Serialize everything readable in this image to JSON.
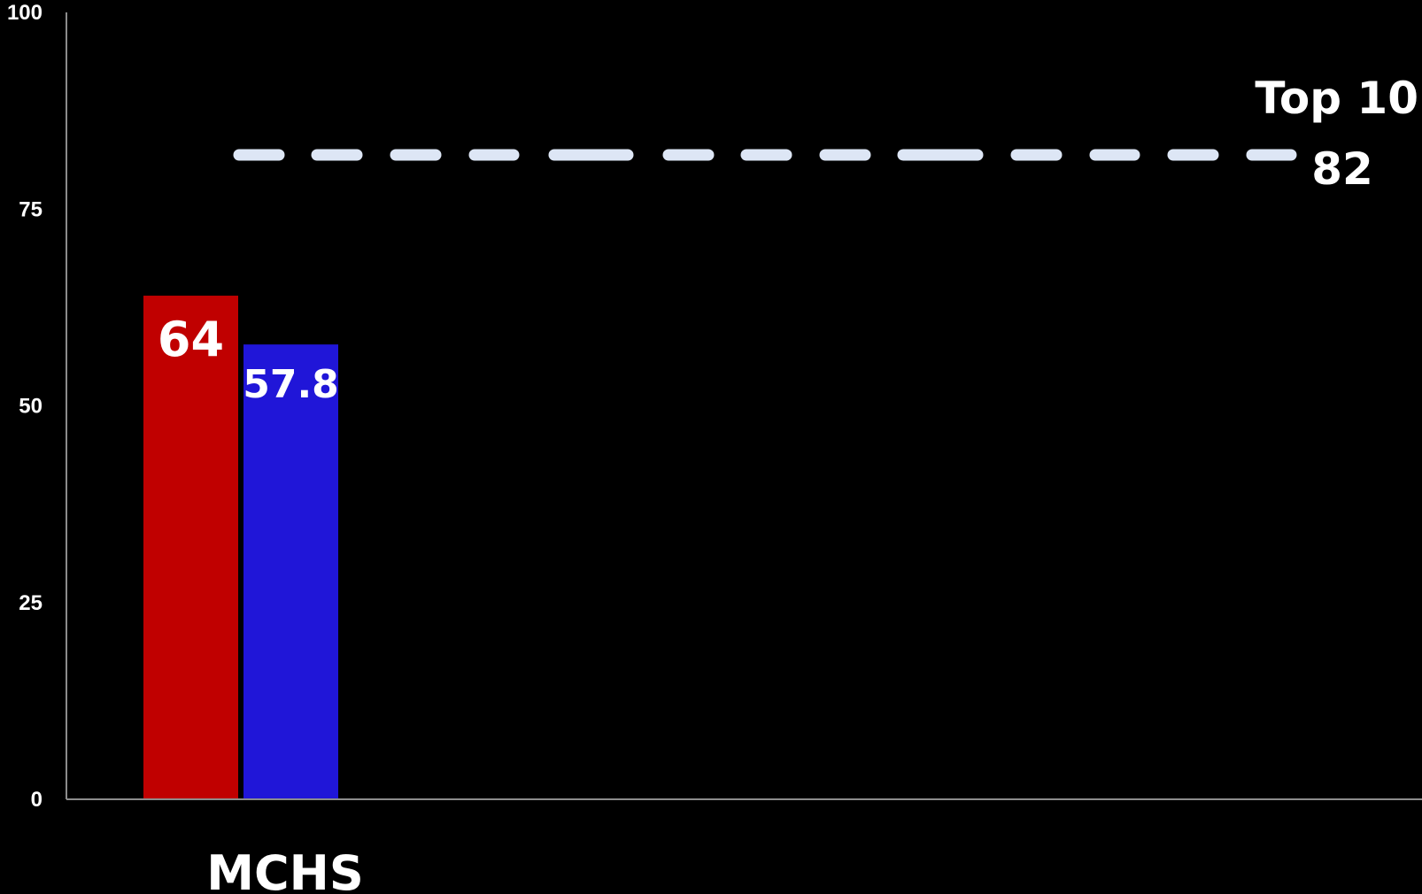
{
  "chart_data": {
    "type": "bar",
    "categories": [
      "MCHS"
    ],
    "series": [
      {
        "values": [
          64
        ],
        "color": "#c00000",
        "labels": [
          "64"
        ]
      },
      {
        "values": [
          57.8
        ],
        "color": "#2016d8",
        "labels": [
          "57.8"
        ]
      }
    ],
    "ylim": [
      0,
      100
    ],
    "yticks": [
      "0",
      "25",
      "50",
      "75",
      "100"
    ],
    "grid": false,
    "reference_line": {
      "value": 82,
      "style": "dashed",
      "color": "#dde6f5",
      "label_top": "Top 10",
      "label_bottom": "82"
    },
    "axis_color": "#8c8c8c",
    "background": "#000000"
  }
}
